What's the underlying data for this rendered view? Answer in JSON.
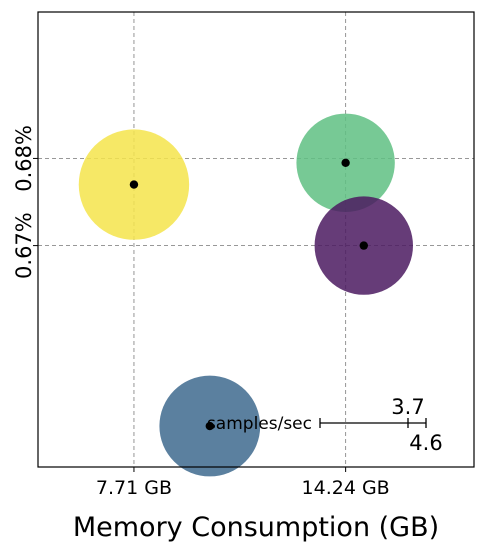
{
  "chart_data": {
    "type": "scatter",
    "title": "",
    "xlabel": "Memory Consumption (GB)",
    "ylabel": "",
    "x_ticks": [
      {
        "value": 7.71,
        "label": "7.71 GB"
      },
      {
        "value": 14.24,
        "label": "14.24 GB"
      }
    ],
    "y_ticks": [
      {
        "value": 0.67,
        "label": "0.67%"
      },
      {
        "value": 0.68,
        "label": "0.68%"
      }
    ],
    "xlim": [
      4.75,
      18.2
    ],
    "ylim": [
      0.6446,
      0.6968
    ],
    "grid": "dashed reference lines at tick values",
    "points": [
      {
        "x": 7.71,
        "y": 0.677,
        "size": 4.6,
        "color": "#f5e44b"
      },
      {
        "x": 14.24,
        "y": 0.6795,
        "size": 4.1,
        "color": "#5fbf83"
      },
      {
        "x": 14.8,
        "y": 0.67,
        "size": 4.1,
        "color": "#4b1a60"
      },
      {
        "x": 10.05,
        "y": 0.6493,
        "size": 4.2,
        "color": "#3e6a8e"
      }
    ],
    "size_legend": {
      "label": "samples/sec",
      "min_label": "3.7",
      "max_label": "4.6",
      "min_value": 3.7,
      "max_value": 4.6
    }
  }
}
